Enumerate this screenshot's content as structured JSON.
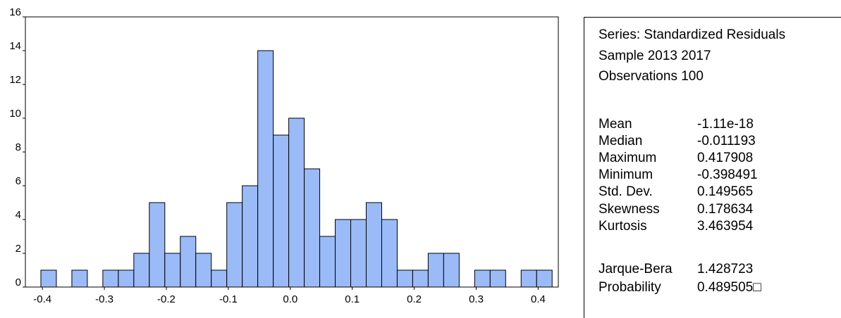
{
  "chart_data": {
    "type": "bar",
    "title": "",
    "xlabel": "",
    "ylabel": "",
    "bin_width": 0.025,
    "bins": [
      {
        "x": -0.39,
        "count": 1
      },
      {
        "x": -0.365,
        "count": 0
      },
      {
        "x": -0.34,
        "count": 1
      },
      {
        "x": -0.315,
        "count": 0
      },
      {
        "x": -0.29,
        "count": 1
      },
      {
        "x": -0.265,
        "count": 1
      },
      {
        "x": -0.24,
        "count": 2
      },
      {
        "x": -0.215,
        "count": 5
      },
      {
        "x": -0.19,
        "count": 2
      },
      {
        "x": -0.165,
        "count": 3
      },
      {
        "x": -0.14,
        "count": 2
      },
      {
        "x": -0.115,
        "count": 1
      },
      {
        "x": -0.09,
        "count": 5
      },
      {
        "x": -0.065,
        "count": 6
      },
      {
        "x": -0.04,
        "count": 14
      },
      {
        "x": -0.015,
        "count": 9
      },
      {
        "x": 0.01,
        "count": 10
      },
      {
        "x": 0.035,
        "count": 7
      },
      {
        "x": 0.06,
        "count": 3
      },
      {
        "x": 0.085,
        "count": 4
      },
      {
        "x": 0.11,
        "count": 4
      },
      {
        "x": 0.135,
        "count": 5
      },
      {
        "x": 0.16,
        "count": 4
      },
      {
        "x": 0.185,
        "count": 1
      },
      {
        "x": 0.21,
        "count": 1
      },
      {
        "x": 0.235,
        "count": 2
      },
      {
        "x": 0.26,
        "count": 2
      },
      {
        "x": 0.285,
        "count": 0
      },
      {
        "x": 0.31,
        "count": 1
      },
      {
        "x": 0.335,
        "count": 1
      },
      {
        "x": 0.36,
        "count": 0
      },
      {
        "x": 0.385,
        "count": 1
      },
      {
        "x": 0.41,
        "count": 1
      }
    ],
    "xlim": [
      -0.4275,
      0.4325
    ],
    "ylim": [
      0,
      16
    ],
    "xticks": [
      {
        "value": -0.4,
        "label": "-0.4"
      },
      {
        "value": -0.3,
        "label": "-0.3"
      },
      {
        "value": -0.2,
        "label": "-0.2"
      },
      {
        "value": -0.1,
        "label": "-0.1"
      },
      {
        "value": 0.0,
        "label": "0.0"
      },
      {
        "value": 0.1,
        "label": "0.1"
      },
      {
        "value": 0.2,
        "label": "0.2"
      },
      {
        "value": 0.3,
        "label": "0.3"
      },
      {
        "value": 0.4,
        "label": "0.4"
      }
    ],
    "yticks": [
      {
        "value": 0,
        "label": "0"
      },
      {
        "value": 2,
        "label": "2"
      },
      {
        "value": 4,
        "label": "4"
      },
      {
        "value": 6,
        "label": "6"
      },
      {
        "value": 8,
        "label": "8"
      },
      {
        "value": 10,
        "label": "10"
      },
      {
        "value": 12,
        "label": "12"
      },
      {
        "value": 14,
        "label": "14"
      },
      {
        "value": 16,
        "label": "16"
      }
    ],
    "grid": false,
    "bar_color": "#9abbf7",
    "bar_edge_color": "#000000"
  },
  "stats": {
    "series": "Series: Standardized Residuals",
    "sample": "Sample 2013 2017",
    "observations": "Observations 100",
    "rows": [
      {
        "label": "Mean",
        "value": "-1.11e-18"
      },
      {
        "label": "Median",
        "value": "-0.011193"
      },
      {
        "label": "Maximum",
        "value": " 0.417908"
      },
      {
        "label": "Minimum",
        "value": "-0.398491"
      },
      {
        "label": "Std. Dev.",
        "value": " 0.149565"
      },
      {
        "label": "Skewness",
        "value": " 0.178634"
      },
      {
        "label": "Kurtosis",
        "value": " 3.463954"
      },
      {
        "label": "Jarque-Bera",
        "value": " 1.428723"
      },
      {
        "label": "Probability",
        "value": " 0.489505□"
      }
    ]
  }
}
